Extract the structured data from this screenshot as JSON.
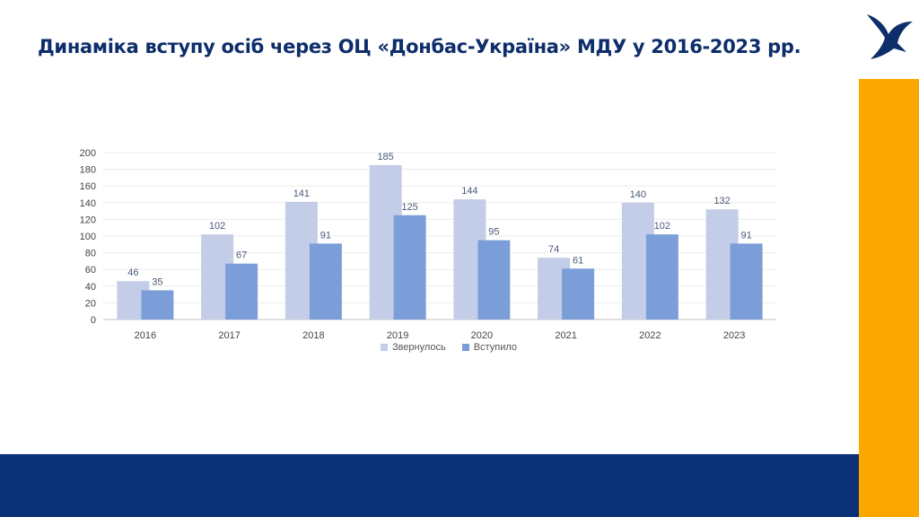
{
  "slide": {
    "title": "Динаміка вступу осіб через ОЦ «Донбас-Україна» МДУ у 2016-2023 рр."
  },
  "colors": {
    "title": "#0d2d6b",
    "accent_orange": "#fca600",
    "footer_navy": "#0b3278",
    "series_applied": "#c3cde8",
    "series_enrolled": "#7b9ed8",
    "label_text": "#4a5a78"
  },
  "logo": {
    "icon": "bird-icon"
  },
  "chart_data": {
    "type": "bar",
    "categories": [
      "2016",
      "2017",
      "2018",
      "2019",
      "2020",
      "2021",
      "2022",
      "2023"
    ],
    "series": [
      {
        "name": "Звернулось",
        "values": [
          46,
          102,
          141,
          185,
          144,
          74,
          140,
          132
        ]
      },
      {
        "name": "Вступило",
        "values": [
          35,
          67,
          91,
          125,
          95,
          61,
          102,
          91
        ]
      }
    ],
    "ylim": [
      0,
      200
    ],
    "yticks": [
      "0",
      "20",
      "40",
      "60",
      "80",
      "100",
      "120",
      "140",
      "160",
      "180",
      "200"
    ],
    "grid": true,
    "legend": "bottom",
    "data_labels": true
  }
}
